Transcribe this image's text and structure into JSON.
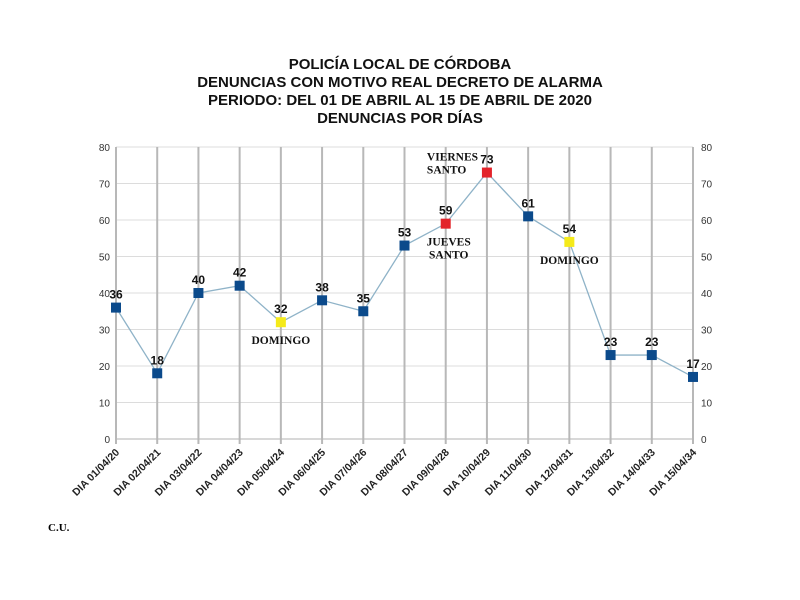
{
  "chart_data": {
    "type": "line",
    "title": [
      "POLICÍA LOCAL DE CÓRDOBA",
      "DENUNCIAS CON MOTIVO REAL DECRETO DE ALARMA",
      "PERIODO: DEL 01 DE ABRIL AL 15 DE ABRIL DE 2020",
      "DENUNCIAS POR DÍAS"
    ],
    "categories": [
      "DIA 01/04/20",
      "DIA 02/04/21",
      "DIA 03/04/22",
      "DIA 04/04/23",
      "DIA 05/04/24",
      "DIA 06/04/25",
      "DIA 07/04/26",
      "DIA 08/04/27",
      "DIA 09/04/28",
      "DIA 10/04/29",
      "DIA 11/04/30",
      "DIA 12/04/31",
      "DIA 13/04/32",
      "DIA 14/04/33",
      "DIA 15/04/34"
    ],
    "values": [
      36,
      18,
      40,
      42,
      32,
      38,
      35,
      53,
      59,
      73,
      61,
      54,
      23,
      23,
      17
    ],
    "point_colors": [
      "#0b4a8b",
      "#0b4a8b",
      "#0b4a8b",
      "#0b4a8b",
      "#f5ea1a",
      "#0b4a8b",
      "#0b4a8b",
      "#0b4a8b",
      "#e3232a",
      "#e3232a",
      "#0b4a8b",
      "#f5ea1a",
      "#0b4a8b",
      "#0b4a8b",
      "#0b4a8b"
    ],
    "line_color": "#8fb3c8",
    "ylim": [
      0,
      80
    ],
    "yticks": [
      0,
      10,
      20,
      30,
      40,
      50,
      60,
      70,
      80
    ],
    "grid": true,
    "annotations": [
      {
        "index": 4,
        "text": [
          "DOMINGO"
        ],
        "position": "below"
      },
      {
        "index": 8,
        "text": [
          "JUEVES",
          "SANTO"
        ],
        "position": "below"
      },
      {
        "index": 9,
        "text": [
          "VIERNES",
          "SANTO"
        ],
        "position": "left"
      },
      {
        "index": 11,
        "text": [
          "DOMINGO"
        ],
        "position": "below"
      }
    ]
  },
  "footer": "C.U."
}
